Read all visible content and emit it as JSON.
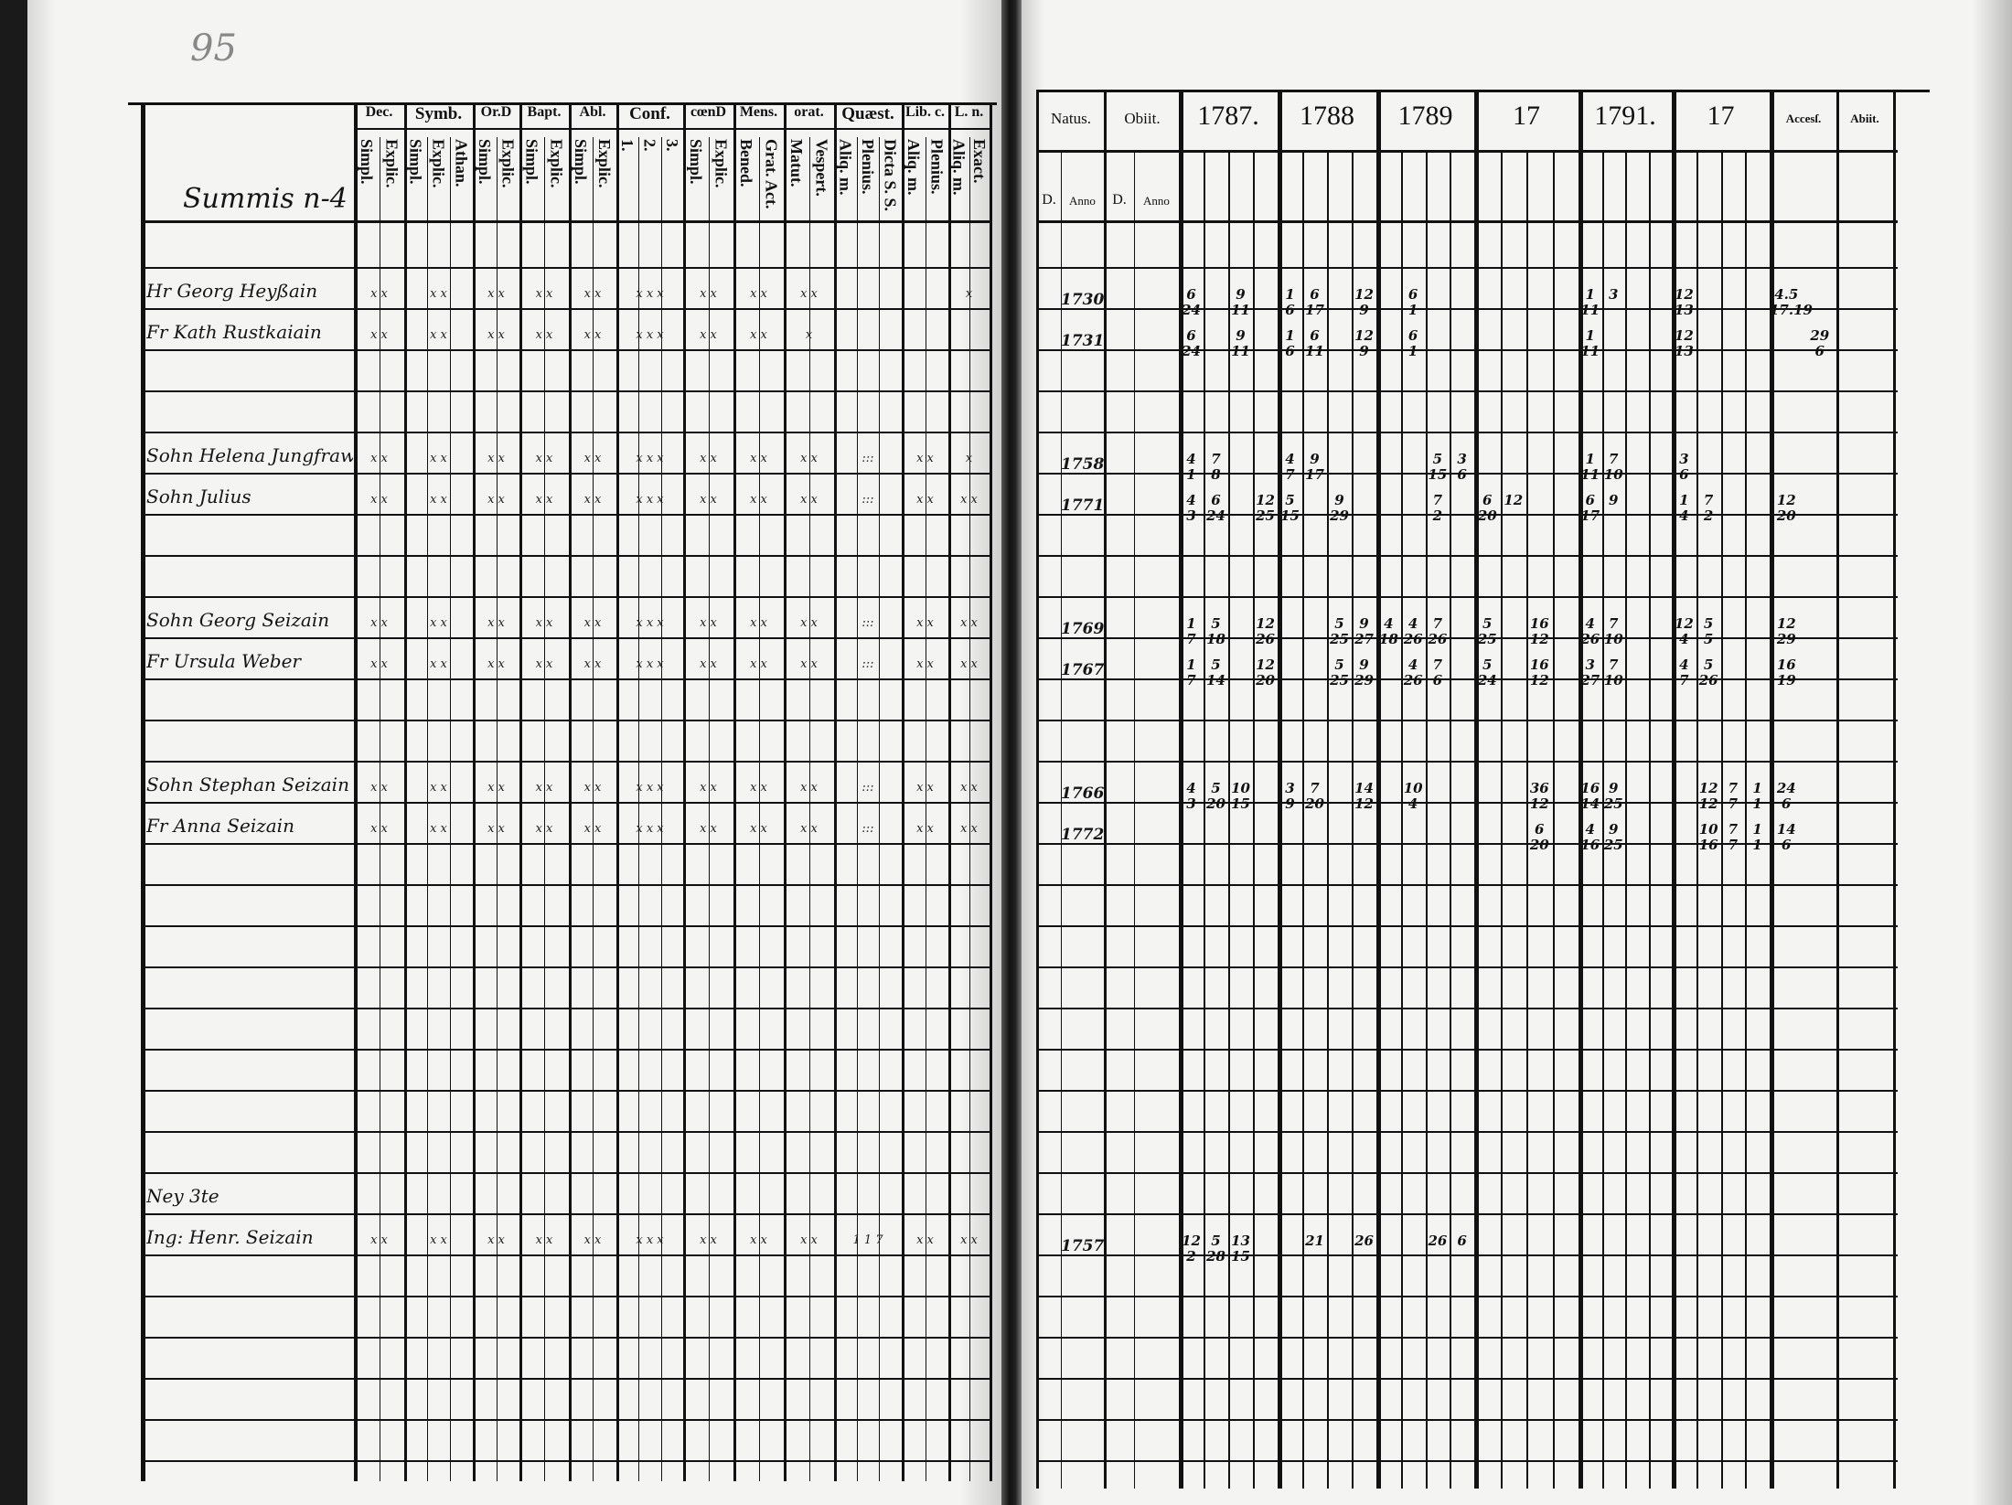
{
  "left_page": {
    "page_number": "95",
    "name_header": "Summis n-4",
    "columns": [
      {
        "label": "Dec.",
        "subs": [
          "Simpl.",
          "Explic."
        ]
      },
      {
        "label": "Symb.",
        "subs": [
          "Simpl.",
          "Explic.",
          "Athan."
        ]
      },
      {
        "label": "Or.D",
        "subs": [
          "Simpl.",
          "Explic."
        ]
      },
      {
        "label": "Bapt.",
        "subs": [
          "Simpl.",
          "Explic."
        ]
      },
      {
        "label": "Abl.",
        "subs": [
          "Simpl.",
          "Explic."
        ]
      },
      {
        "label": "Conf.",
        "subs": [
          "1.",
          "2.",
          "3."
        ]
      },
      {
        "label": "cœnD",
        "subs": [
          "Simpl.",
          "Explic."
        ]
      },
      {
        "label": "Mens.",
        "subs": [
          "Bened.",
          "Grat. Act."
        ]
      },
      {
        "label": "orat.",
        "subs": [
          "Matut.",
          "Vespert."
        ]
      },
      {
        "label": "Quæst.",
        "subs": [
          "Aliq. m.",
          "Plenius.",
          "Dicta S. S."
        ]
      },
      {
        "label": "Lib. c.",
        "subs": [
          "Aliq. m.",
          "Plenius."
        ]
      },
      {
        "label": "L. n.",
        "subs": [
          "Aliq. m.",
          "Exact."
        ]
      }
    ],
    "rows": [
      {
        "row": 0,
        "name": "Hr Georg Heyßain",
        "marks": [
          "x x",
          "x x",
          "x x",
          "x x",
          "x x",
          "x x x",
          "x x",
          "x x",
          "x x",
          "",
          "",
          "x"
        ]
      },
      {
        "row": 1,
        "name": "Fr Kath Rustkaiain",
        "marks": [
          "x x",
          "x x",
          "x x",
          "x x",
          "x x",
          "x x x",
          "x x",
          "x x",
          "x",
          "",
          "",
          ""
        ]
      },
      {
        "row": 4,
        "name": "Sohn Helena Jungfraw",
        "marks": [
          "x x",
          "x x",
          "x x",
          "x x",
          "x x",
          "x x x",
          "x x",
          "x x",
          "x x",
          ":::",
          "x x",
          "x"
        ]
      },
      {
        "row": 5,
        "name": "Sohn Julius",
        "marks": [
          "x x",
          "x x",
          "x x",
          "x x",
          "x x",
          "x x x",
          "x x",
          "x x",
          "x x",
          ":::",
          "x x",
          "x x"
        ]
      },
      {
        "row": 8,
        "name": "Sohn Georg Seizain",
        "marks": [
          "x x",
          "x x",
          "x x",
          "x x",
          "x x",
          "x x x",
          "x x",
          "x x",
          "x x",
          ":::",
          "x x",
          "x x"
        ]
      },
      {
        "row": 9,
        "name": "Fr Ursula Weber",
        "marks": [
          "x x",
          "x x",
          "x x",
          "x x",
          "x x",
          "x x x",
          "x x",
          "x x",
          "x x",
          ":::",
          "x x",
          "x x"
        ]
      },
      {
        "row": 12,
        "name": "Sohn Stephan Seizain",
        "marks": [
          "x x",
          "x x",
          "x x",
          "x x",
          "x x",
          "x x x",
          "x x",
          "x x",
          "x x",
          ":::",
          "x x",
          "x x"
        ]
      },
      {
        "row": 13,
        "name": "Fr Anna Seizain",
        "marks": [
          "x x",
          "x x",
          "x x",
          "x x",
          "x x",
          "x x x",
          "x x",
          "x x",
          "x x",
          ":::",
          "x x",
          "x x"
        ]
      },
      {
        "row": 22,
        "name": "Ney 3te",
        "marks": [
          "",
          "",
          "",
          "",
          "",
          "",
          "",
          "",
          "",
          "",
          "",
          ""
        ]
      },
      {
        "row": 23,
        "name": "Ing: Henr. Seizain",
        "marks": [
          "x x",
          "x x",
          "x x",
          "x x",
          "x x",
          "x x x",
          "x x",
          "x x",
          "x x",
          "1 1 7",
          "x x",
          "x x"
        ]
      }
    ]
  },
  "right_page": {
    "headers": {
      "natus": "Natus.",
      "obiit": "Obiit.",
      "d": "D.",
      "anno": "Anno",
      "accessit": "Accesſ.",
      "abiit": "Abiit."
    },
    "years": [
      "1787.",
      "1788",
      "1789",
      "17",
      "1791.",
      "17"
    ],
    "rows": [
      {
        "row": 0,
        "natus": "1730",
        "entries": [
          [
            0,
            0,
            "6\n24"
          ],
          [
            0,
            2,
            "9\n11"
          ],
          [
            1,
            0,
            "1\n6"
          ],
          [
            1,
            1,
            "6\n17"
          ],
          [
            1,
            3,
            "12\n9"
          ],
          [
            2,
            1,
            "6\n1"
          ],
          [
            4,
            0,
            "1\n11"
          ],
          [
            4,
            1,
            "3"
          ],
          [
            5,
            0,
            "12\n13"
          ],
          [
            6,
            0,
            "4.5\n17.19"
          ]
        ]
      },
      {
        "row": 1,
        "natus": "1731",
        "entries": [
          [
            0,
            0,
            "6\n24"
          ],
          [
            0,
            2,
            "9\n11"
          ],
          [
            1,
            0,
            "1\n6"
          ],
          [
            1,
            1,
            "6\n11"
          ],
          [
            1,
            3,
            "12\n9"
          ],
          [
            2,
            1,
            "6\n1"
          ],
          [
            4,
            0,
            "1\n11"
          ],
          [
            5,
            0,
            "12\n13"
          ],
          [
            6,
            1,
            "29\n6"
          ]
        ]
      },
      {
        "row": 4,
        "natus": "1758",
        "entries": [
          [
            0,
            0,
            "4\n1"
          ],
          [
            0,
            1,
            "7\n8"
          ],
          [
            1,
            0,
            "4\n7"
          ],
          [
            1,
            1,
            "9\n17"
          ],
          [
            2,
            2,
            "5\n15"
          ],
          [
            2,
            3,
            "3\n6"
          ],
          [
            4,
            0,
            "1\n11"
          ],
          [
            4,
            1,
            "7\n10"
          ],
          [
            5,
            0,
            "3\n6"
          ]
        ]
      },
      {
        "row": 5,
        "natus": "1771",
        "entries": [
          [
            0,
            0,
            "4\n3"
          ],
          [
            0,
            1,
            "6\n24"
          ],
          [
            0,
            3,
            "12\n25"
          ],
          [
            1,
            0,
            "5\n15"
          ],
          [
            1,
            2,
            "9\n29"
          ],
          [
            2,
            2,
            "7\n2"
          ],
          [
            3,
            0,
            "6\n20"
          ],
          [
            3,
            1,
            "12"
          ],
          [
            4,
            0,
            "6\n17"
          ],
          [
            4,
            1,
            "9"
          ],
          [
            5,
            0,
            "1\n4"
          ],
          [
            5,
            1,
            "7\n2"
          ],
          [
            6,
            0,
            "12\n20"
          ]
        ]
      },
      {
        "row": 8,
        "natus": "1769",
        "entries": [
          [
            0,
            0,
            "1\n7"
          ],
          [
            0,
            1,
            "5\n18"
          ],
          [
            0,
            3,
            "12\n26"
          ],
          [
            1,
            2,
            "5\n25"
          ],
          [
            1,
            3,
            "9\n27"
          ],
          [
            2,
            0,
            "4\n18"
          ],
          [
            2,
            1,
            "4\n26"
          ],
          [
            2,
            2,
            "7\n26"
          ],
          [
            3,
            0,
            "5\n25"
          ],
          [
            3,
            2,
            "16\n12"
          ],
          [
            4,
            0,
            "4\n26"
          ],
          [
            4,
            1,
            "7\n10"
          ],
          [
            5,
            0,
            "12\n4"
          ],
          [
            5,
            1,
            "5\n5"
          ],
          [
            6,
            0,
            "12\n29"
          ]
        ]
      },
      {
        "row": 9,
        "natus": "1767",
        "entries": [
          [
            0,
            0,
            "1\n7"
          ],
          [
            0,
            1,
            "5\n14"
          ],
          [
            0,
            3,
            "12\n20"
          ],
          [
            1,
            2,
            "5\n25"
          ],
          [
            1,
            3,
            "9\n29"
          ],
          [
            2,
            1,
            "4\n26"
          ],
          [
            2,
            2,
            "7\n6"
          ],
          [
            3,
            0,
            "5\n24"
          ],
          [
            3,
            2,
            "16\n12"
          ],
          [
            4,
            0,
            "3\n27"
          ],
          [
            4,
            1,
            "7\n10"
          ],
          [
            5,
            0,
            "4\n7"
          ],
          [
            5,
            1,
            "5\n26"
          ],
          [
            6,
            0,
            "16\n19"
          ]
        ]
      },
      {
        "row": 12,
        "natus": "1766",
        "entries": [
          [
            0,
            0,
            "4\n3"
          ],
          [
            0,
            1,
            "5\n20"
          ],
          [
            0,
            2,
            "10\n15"
          ],
          [
            1,
            0,
            "3\n9"
          ],
          [
            1,
            1,
            "7\n20"
          ],
          [
            1,
            3,
            "14\n12"
          ],
          [
            2,
            1,
            "10\n4"
          ],
          [
            3,
            2,
            "36\n12"
          ],
          [
            4,
            0,
            "16\n14"
          ],
          [
            4,
            1,
            "9\n25"
          ],
          [
            5,
            1,
            "12\n12"
          ],
          [
            5,
            2,
            "7\n7"
          ],
          [
            5,
            3,
            "1\n1"
          ],
          [
            6,
            0,
            "24\n6"
          ]
        ]
      },
      {
        "row": 13,
        "natus": "1772",
        "entries": [
          [
            3,
            2,
            "6\n20"
          ],
          [
            4,
            0,
            "4\n16"
          ],
          [
            4,
            1,
            "9\n25"
          ],
          [
            5,
            1,
            "10\n16"
          ],
          [
            5,
            2,
            "7\n7"
          ],
          [
            5,
            3,
            "1\n1"
          ],
          [
            6,
            0,
            "14\n6"
          ]
        ]
      },
      {
        "row": 23,
        "natus": "1757",
        "entries": [
          [
            0,
            0,
            "12\n2"
          ],
          [
            0,
            1,
            "5\n28"
          ],
          [
            0,
            2,
            "13\n15"
          ],
          [
            1,
            1,
            "21"
          ],
          [
            1,
            3,
            "26"
          ],
          [
            2,
            2,
            "26"
          ],
          [
            2,
            3,
            "6"
          ]
        ]
      }
    ]
  }
}
